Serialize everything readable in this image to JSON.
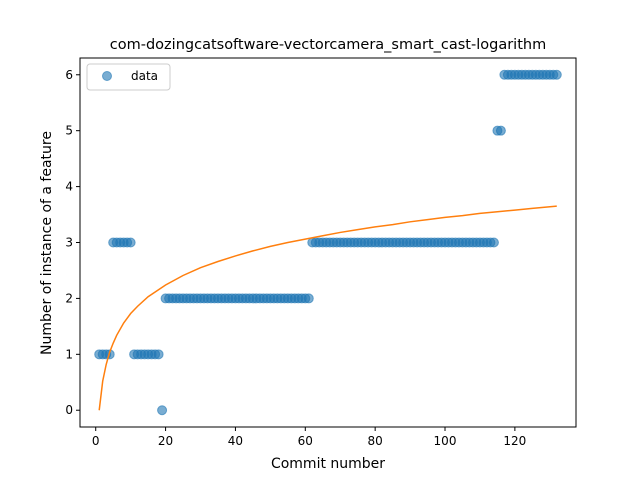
{
  "chart_data": {
    "type": "scatter",
    "title": "com-dozingcatsoftware-vectorcamera_smart_cast-logarithm",
    "xlabel": "Commit number",
    "ylabel": "Number of instance of a feature",
    "xlim": [
      -4.5,
      137.5
    ],
    "ylim": [
      -0.3,
      6.3
    ],
    "xticks": [
      0,
      20,
      40,
      60,
      80,
      100,
      120
    ],
    "yticks": [
      0,
      1,
      2,
      3,
      4,
      5,
      6
    ],
    "grid": false,
    "legend": {
      "position": "upper-left",
      "entries": [
        "data"
      ]
    },
    "colors": {
      "scatter": "#1f77b4",
      "fit": "#ff7f0e"
    },
    "series": [
      {
        "name": "data",
        "kind": "scatter",
        "x": [
          1,
          2,
          3,
          4,
          5,
          6,
          7,
          8,
          9,
          10,
          11,
          12,
          13,
          14,
          15,
          16,
          17,
          18,
          19,
          20,
          21,
          22,
          23,
          24,
          25,
          26,
          27,
          28,
          29,
          30,
          31,
          32,
          33,
          34,
          35,
          36,
          37,
          38,
          39,
          40,
          41,
          42,
          43,
          44,
          45,
          46,
          47,
          48,
          49,
          50,
          51,
          52,
          53,
          54,
          55,
          56,
          57,
          58,
          59,
          60,
          61,
          62,
          63,
          64,
          65,
          66,
          67,
          68,
          69,
          70,
          71,
          72,
          73,
          74,
          75,
          76,
          77,
          78,
          79,
          80,
          81,
          82,
          83,
          84,
          85,
          86,
          87,
          88,
          89,
          90,
          91,
          92,
          93,
          94,
          95,
          96,
          97,
          98,
          99,
          100,
          101,
          102,
          103,
          104,
          105,
          106,
          107,
          108,
          109,
          110,
          111,
          112,
          113,
          114,
          115,
          116,
          117,
          118,
          119,
          120,
          121,
          122,
          123,
          124,
          125,
          126,
          127,
          128,
          129,
          130,
          131,
          132
        ],
        "y": [
          1,
          1,
          1,
          1,
          3,
          3,
          3,
          3,
          3,
          3,
          1,
          1,
          1,
          1,
          1,
          1,
          1,
          1,
          0,
          2,
          2,
          2,
          2,
          2,
          2,
          2,
          2,
          2,
          2,
          2,
          2,
          2,
          2,
          2,
          2,
          2,
          2,
          2,
          2,
          2,
          2,
          2,
          2,
          2,
          2,
          2,
          2,
          2,
          2,
          2,
          2,
          2,
          2,
          2,
          2,
          2,
          2,
          2,
          2,
          2,
          2,
          3,
          3,
          3,
          3,
          3,
          3,
          3,
          3,
          3,
          3,
          3,
          3,
          3,
          3,
          3,
          3,
          3,
          3,
          3,
          3,
          3,
          3,
          3,
          3,
          3,
          3,
          3,
          3,
          3,
          3,
          3,
          3,
          3,
          3,
          3,
          3,
          3,
          3,
          3,
          3,
          3,
          3,
          3,
          3,
          3,
          3,
          3,
          3,
          3,
          3,
          3,
          3,
          3,
          5,
          5,
          6,
          6,
          6,
          6,
          6,
          6,
          6,
          6,
          6,
          6,
          6,
          6,
          6,
          6,
          6,
          6
        ]
      },
      {
        "name": "",
        "kind": "line",
        "x": [
          1,
          2,
          3,
          4,
          5,
          6,
          8,
          10,
          12,
          15,
          20,
          25,
          30,
          35,
          40,
          45,
          50,
          55,
          60,
          65,
          70,
          75,
          80,
          85,
          90,
          95,
          100,
          105,
          110,
          115,
          120,
          125,
          132
        ],
        "y": [
          0.0,
          0.52,
          0.82,
          1.04,
          1.2,
          1.34,
          1.56,
          1.73,
          1.86,
          2.03,
          2.24,
          2.41,
          2.55,
          2.66,
          2.76,
          2.85,
          2.93,
          3.0,
          3.06,
          3.12,
          3.18,
          3.23,
          3.28,
          3.32,
          3.37,
          3.41,
          3.45,
          3.48,
          3.52,
          3.55,
          3.58,
          3.61,
          3.65
        ]
      }
    ]
  }
}
